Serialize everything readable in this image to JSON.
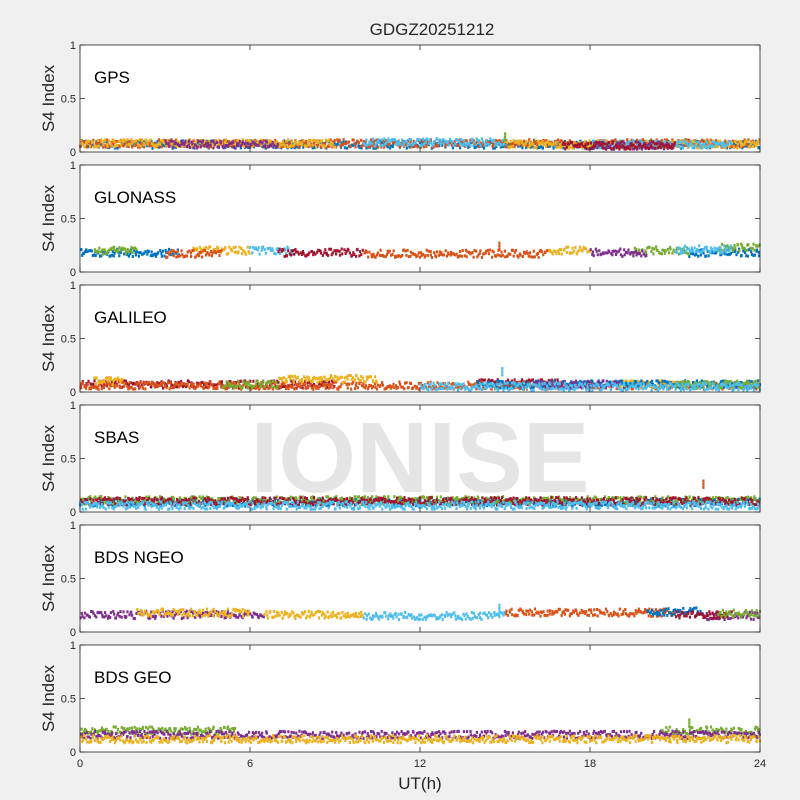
{
  "chart_data": {
    "type": "scatter",
    "title": "GDGZ20251212",
    "xlabel": "UT(h)",
    "ylabel": "S4 Index",
    "xlim": [
      0,
      24
    ],
    "ylim": [
      0,
      1
    ],
    "xticks": [
      0,
      6,
      12,
      18,
      24
    ],
    "yticks": [
      0,
      0.5,
      1
    ],
    "grid": false,
    "watermark": "IONISE",
    "panels": [
      {
        "name": "GPS",
        "series": [
          {
            "color": "#0072bd",
            "segments": [
              [
                0,
                24,
                0.07
              ]
            ]
          },
          {
            "color": "#d95319",
            "segments": [
              [
                0,
                24,
                0.08
              ]
            ]
          },
          {
            "color": "#edb120",
            "segments": [
              [
                0,
                9,
                0.08
              ],
              [
                15,
                24,
                0.07
              ]
            ]
          },
          {
            "color": "#4dbeee",
            "segments": [
              [
                10,
                15,
                0.09
              ],
              [
                18,
                23,
                0.07
              ]
            ]
          },
          {
            "color": "#7e2f8e",
            "segments": [
              [
                3,
                7,
                0.07
              ],
              [
                18,
                21,
                0.06
              ]
            ]
          },
          {
            "color": "#a2142f",
            "segments": [
              [
                17,
                21,
                0.06
              ]
            ]
          }
        ],
        "outliers": [
          {
            "x": 15.0,
            "y": 0.17,
            "color": "#77ac30"
          }
        ]
      },
      {
        "name": "GLONASS",
        "series": [
          {
            "color": "#0072bd",
            "segments": [
              [
                0,
                3.5,
                0.18
              ],
              [
                21.5,
                24,
                0.18
              ]
            ]
          },
          {
            "color": "#77ac30",
            "segments": [
              [
                0.5,
                2,
                0.2
              ],
              [
                19.5,
                21.5,
                0.2
              ],
              [
                22.5,
                24,
                0.23
              ]
            ]
          },
          {
            "color": "#edb120",
            "segments": [
              [
                4,
                6,
                0.2
              ],
              [
                16.5,
                18,
                0.2
              ]
            ]
          },
          {
            "color": "#4dbeee",
            "segments": [
              [
                6,
                7.5,
                0.2
              ],
              [
                21,
                23,
                0.21
              ]
            ]
          },
          {
            "color": "#a2142f",
            "segments": [
              [
                7,
                10,
                0.18
              ]
            ]
          },
          {
            "color": "#d95319",
            "segments": [
              [
                3,
                5,
                0.17
              ],
              [
                10,
                16.5,
                0.17
              ]
            ]
          },
          {
            "color": "#7e2f8e",
            "segments": [
              [
                18,
                20,
                0.18
              ]
            ]
          }
        ],
        "outliers": [
          {
            "x": 14.8,
            "y": 0.27,
            "color": "#d95319"
          }
        ]
      },
      {
        "name": "GALILEO",
        "series": [
          {
            "color": "#a2142f",
            "segments": [
              [
                0,
                9,
                0.07
              ],
              [
                14,
                17,
                0.08
              ]
            ]
          },
          {
            "color": "#d95319",
            "segments": [
              [
                0,
                24,
                0.06
              ]
            ]
          },
          {
            "color": "#edb120",
            "segments": [
              [
                0.5,
                1.5,
                0.1
              ],
              [
                7,
                10.5,
                0.12
              ],
              [
                19,
                21.5,
                0.07
              ]
            ]
          },
          {
            "color": "#0072bd",
            "segments": [
              [
                14,
                24,
                0.07
              ]
            ]
          },
          {
            "color": "#7e2f8e",
            "segments": [
              [
                16,
                19,
                0.07
              ]
            ]
          },
          {
            "color": "#77ac30",
            "segments": [
              [
                5,
                7,
                0.07
              ],
              [
                21,
                24,
                0.07
              ]
            ]
          },
          {
            "color": "#4dbeee",
            "segments": [
              [
                12,
                24,
                0.05
              ]
            ]
          }
        ],
        "outliers": [
          {
            "x": 14.9,
            "y": 0.22,
            "color": "#4dbeee"
          }
        ]
      },
      {
        "name": "SBAS",
        "series": [
          {
            "color": "#0072bd",
            "segments": [
              [
                0,
                24,
                0.09
              ]
            ]
          },
          {
            "color": "#77ac30",
            "segments": [
              [
                0,
                24,
                0.11
              ]
            ]
          },
          {
            "color": "#a2142f",
            "segments": [
              [
                0,
                24,
                0.1
              ]
            ]
          },
          {
            "color": "#4dbeee",
            "segments": [
              [
                0,
                24,
                0.06
              ]
            ]
          }
        ],
        "outliers": [
          {
            "x": 22.0,
            "y": 0.29,
            "color": "#d95319"
          }
        ]
      },
      {
        "name": "BDS NGEO",
        "series": [
          {
            "color": "#7e2f8e",
            "segments": [
              [
                0,
                6.5,
                0.16
              ],
              [
                22,
                24,
                0.15
              ]
            ]
          },
          {
            "color": "#edb120",
            "segments": [
              [
                2,
                6,
                0.18
              ],
              [
                6.5,
                10,
                0.16
              ]
            ]
          },
          {
            "color": "#4dbeee",
            "segments": [
              [
                10,
                15,
                0.15
              ]
            ]
          },
          {
            "color": "#d95319",
            "segments": [
              [
                15,
                21,
                0.18
              ]
            ]
          },
          {
            "color": "#0072bd",
            "segments": [
              [
                20,
                22,
                0.19
              ]
            ]
          },
          {
            "color": "#a2142f",
            "segments": [
              [
                21,
                23,
                0.16
              ]
            ]
          },
          {
            "color": "#77ac30",
            "segments": [
              [
                22.5,
                24,
                0.17
              ]
            ]
          }
        ],
        "outliers": [
          {
            "x": 14.8,
            "y": 0.25,
            "color": "#4dbeee"
          }
        ]
      },
      {
        "name": "BDS GEO",
        "series": [
          {
            "color": "#77ac30",
            "segments": [
              [
                0,
                5.5,
                0.2
              ],
              [
                20.5,
                24,
                0.2
              ]
            ]
          },
          {
            "color": "#7e2f8e",
            "segments": [
              [
                0,
                24,
                0.16
              ]
            ]
          },
          {
            "color": "#edb120",
            "segments": [
              [
                0,
                24,
                0.12
              ]
            ]
          }
        ],
        "outliers": [
          {
            "x": 21.5,
            "y": 0.3,
            "color": "#77ac30"
          }
        ]
      }
    ]
  }
}
